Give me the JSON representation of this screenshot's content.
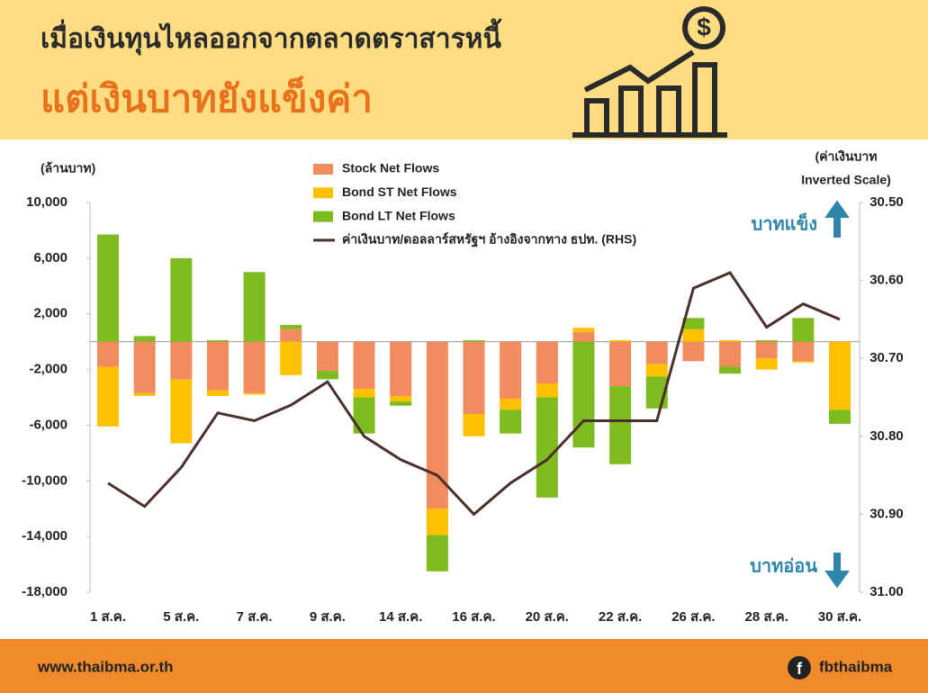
{
  "header": {
    "title": "เมื่อเงินทุนไหลออกจากตลาดตราสารหนี้",
    "subtitle": "แต่เงินบาทยังแข็งค่า"
  },
  "chart_data": {
    "type": "bar",
    "stacked": true,
    "y_label": "(ล้านบาท)",
    "y2_label": [
      "(ค่าเงินบาท",
      "Inverted Scale)"
    ],
    "annotations": [
      "บาทแข็ง",
      "บาทอ่อน"
    ],
    "categories": [
      "1 ส.ค.",
      null,
      "5 ส.ค.",
      null,
      "7 ส.ค.",
      null,
      "9 ส.ค.",
      null,
      "14 ส.ค.",
      null,
      "16 ส.ค.",
      null,
      "20 ส.ค.",
      null,
      "22 ส.ค.",
      null,
      "26 ส.ค.",
      null,
      "28 ส.ค.",
      null,
      "30 ส.ค."
    ],
    "ylim": [
      -18000,
      10000
    ],
    "yticks": [
      {
        "value": 10000,
        "label": "10,000"
      },
      {
        "value": 6000,
        "label": "6,000"
      },
      {
        "value": 2000,
        "label": "2,000"
      },
      {
        "value": -2000,
        "label": "-2,000"
      },
      {
        "value": -6000,
        "label": "-6,000"
      },
      {
        "value": -10000,
        "label": "-10,000"
      },
      {
        "value": -14000,
        "label": "-14,000"
      },
      {
        "value": -18000,
        "label": "-18,000"
      }
    ],
    "y2lim": [
      30.5,
      31.0
    ],
    "y2_inverted": true,
    "y2ticks": [
      {
        "value": 30.5,
        "label": "30.50"
      },
      {
        "value": 30.6,
        "label": "30.60"
      },
      {
        "value": 30.7,
        "label": "30.70"
      },
      {
        "value": 30.8,
        "label": "30.80"
      },
      {
        "value": 30.9,
        "label": "30.90"
      },
      {
        "value": 31.0,
        "label": "31.00"
      }
    ],
    "negative_tick_color": "#e0201b",
    "series": [
      {
        "name": "Stock Net Flows",
        "color": "#f28c5e",
        "values": [
          -1800,
          -3700,
          -2700,
          -3500,
          -3700,
          900,
          -2100,
          -3400,
          -3900,
          -12000,
          -5200,
          -4100,
          -3000,
          700,
          -3200,
          -1600,
          -1400,
          -1800,
          -1200,
          -1400,
          0
        ]
      },
      {
        "name": "Bond ST Net Flows",
        "color": "#ffc000",
        "values": [
          -4300,
          -200,
          -4600,
          -400,
          -100,
          -2400,
          0,
          -600,
          -400,
          -1900,
          -1600,
          -800,
          -1000,
          300,
          100,
          -900,
          900,
          100,
          -800,
          -100,
          -4900
        ]
      },
      {
        "name": "Bond LT Net Flows",
        "color": "#7dbb1e",
        "values": [
          7700,
          400,
          6000,
          100,
          5000,
          300,
          -600,
          -2600,
          -300,
          -2600,
          100,
          -1700,
          -7200,
          -7600,
          -5600,
          -2300,
          800,
          -500,
          100,
          1700,
          -1000
        ]
      },
      {
        "name": "ค่าเงินบาท/ดอลลาร์สหรัฐฯ อ้างอิงจากทาง ธปท. (RHS)",
        "color": "#4a302a",
        "type": "line",
        "axis": "y2",
        "values": [
          30.86,
          30.89,
          30.84,
          30.77,
          30.78,
          30.76,
          30.73,
          30.8,
          30.83,
          30.85,
          30.9,
          30.86,
          30.83,
          30.78,
          30.78,
          30.78,
          30.61,
          30.59,
          30.66,
          30.63,
          30.65
        ]
      }
    ]
  },
  "footer": {
    "website": "www.thaibma.or.th",
    "facebook": "fbthaibma"
  }
}
